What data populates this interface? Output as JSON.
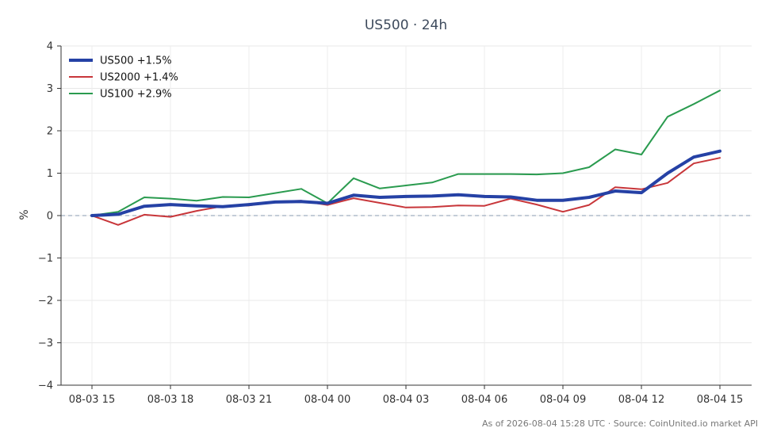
{
  "chart_data": {
    "type": "line",
    "title": "US500 · 24h",
    "xlabel": "",
    "ylabel": "%",
    "ylim": [
      -4,
      4
    ],
    "yticks": [
      4,
      3,
      2,
      1,
      0,
      -1,
      -2,
      -3,
      -4
    ],
    "ytick_labels": [
      "4",
      "3",
      "2",
      "1",
      "0",
      "−1",
      "−2",
      "−3",
      "−4"
    ],
    "xtick_labels": [
      "08-03 15",
      "08-03 18",
      "08-03 21",
      "08-04 00",
      "08-04 03",
      "08-04 06",
      "08-04 09",
      "08-04 12",
      "08-04 15"
    ],
    "x": [
      "08-03 15",
      "08-03 16",
      "08-03 17",
      "08-03 18",
      "08-03 19",
      "08-03 20",
      "08-03 21",
      "08-03 22",
      "08-03 23",
      "08-04 00",
      "08-04 01",
      "08-04 02",
      "08-04 03",
      "08-04 04",
      "08-04 05",
      "08-04 06",
      "08-04 07",
      "08-04 08",
      "08-04 09",
      "08-04 10",
      "08-04 11",
      "08-04 12",
      "08-04 13",
      "08-04 14",
      "08-04 15"
    ],
    "grid": true,
    "zero_line": true,
    "legend_position": "top-left",
    "series": [
      {
        "name": "US500 +1.5%",
        "color": "#2541a5",
        "values": [
          0.0,
          0.03,
          0.22,
          0.26,
          0.23,
          0.21,
          0.26,
          0.32,
          0.33,
          0.29,
          0.48,
          0.43,
          0.45,
          0.46,
          0.49,
          0.45,
          0.44,
          0.36,
          0.36,
          0.43,
          0.58,
          0.54,
          1.0,
          1.38,
          1.52
        ]
      },
      {
        "name": "US2000 +1.4%",
        "color": "#c8363a",
        "values": [
          0.0,
          -0.22,
          0.02,
          -0.03,
          0.11,
          0.22,
          0.24,
          0.33,
          0.35,
          0.25,
          0.41,
          0.3,
          0.19,
          0.2,
          0.24,
          0.23,
          0.4,
          0.26,
          0.09,
          0.25,
          0.67,
          0.62,
          0.77,
          1.23,
          1.36
        ]
      },
      {
        "name": "US100 +2.9%",
        "color": "#2a9b4f",
        "values": [
          0.0,
          0.09,
          0.43,
          0.4,
          0.35,
          0.44,
          0.43,
          0.53,
          0.63,
          0.29,
          0.88,
          0.64,
          0.71,
          0.78,
          0.98,
          0.98,
          0.98,
          0.97,
          1.0,
          1.14,
          1.56,
          1.44,
          2.33,
          2.63,
          2.95
        ]
      }
    ]
  },
  "footer": "As of 2026-08-04 15:28 UTC · Source: CoinUnited.io market API"
}
